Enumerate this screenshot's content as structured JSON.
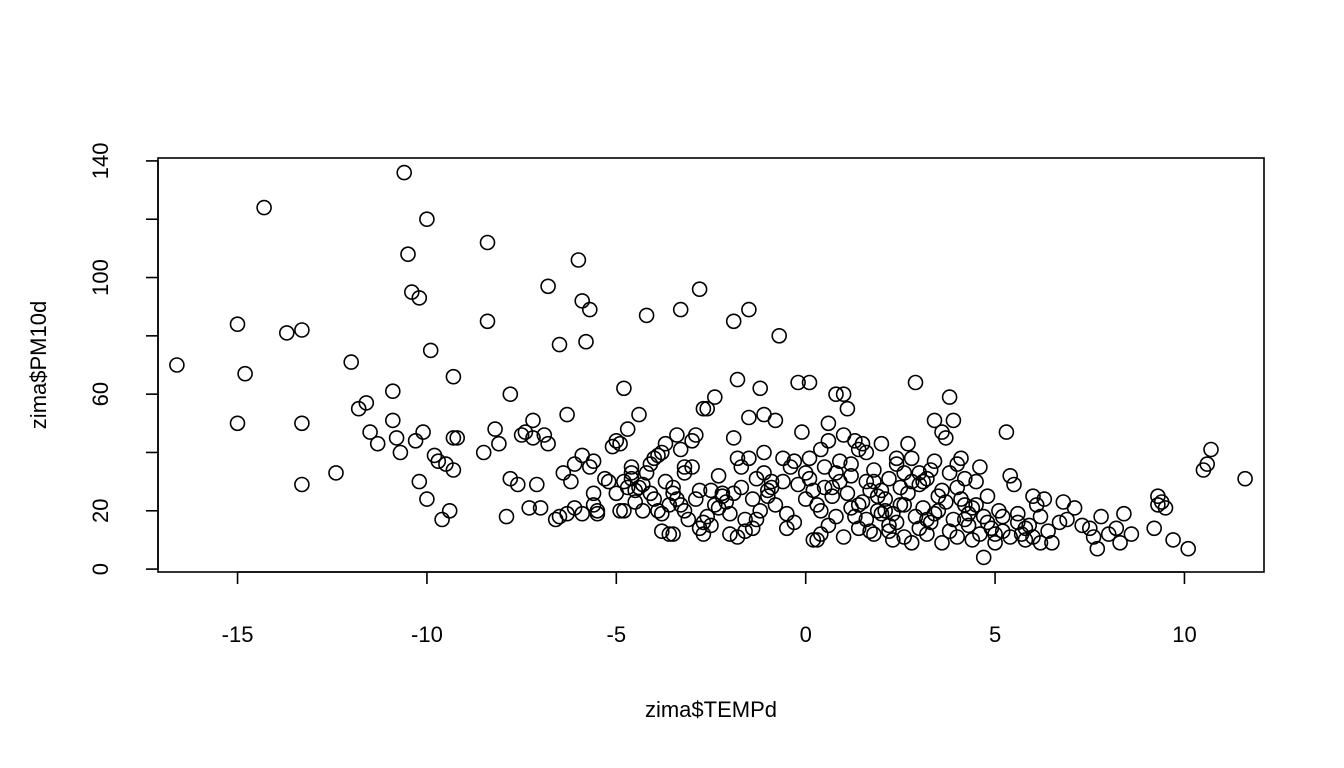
{
  "chart_data": {
    "type": "scatter",
    "title": "",
    "xlabel": "zima$TEMPd",
    "ylabel": "zima$PM10d",
    "xlim": [
      -17.1,
      12.1
    ],
    "ylim": [
      -1,
      141
    ],
    "xticks": [
      -15,
      -10,
      -5,
      0,
      5,
      10
    ],
    "xtick_labels": [
      "-15",
      "-10",
      "-5",
      "0",
      "5",
      "10"
    ],
    "yticks": [
      0,
      20,
      40,
      60,
      80,
      100,
      120,
      140
    ],
    "ytick_labels": [
      "0",
      "20",
      "",
      "60",
      "",
      "100",
      "",
      "140"
    ],
    "grid": false,
    "marker": "open-circle",
    "marker_color": "#000000",
    "points": [
      [
        -16.6,
        70
      ],
      [
        -15.0,
        84
      ],
      [
        -15.0,
        50
      ],
      [
        -14.3,
        124
      ],
      [
        -14.8,
        67
      ],
      [
        -13.7,
        81
      ],
      [
        -13.3,
        82
      ],
      [
        -13.3,
        50
      ],
      [
        -13.3,
        29
      ],
      [
        -12.4,
        33
      ],
      [
        -12.0,
        71
      ],
      [
        -11.8,
        55
      ],
      [
        -11.6,
        57
      ],
      [
        -11.5,
        47
      ],
      [
        -11.3,
        43
      ],
      [
        -10.9,
        61
      ],
      [
        -10.9,
        51
      ],
      [
        -10.8,
        45
      ],
      [
        -10.7,
        40
      ],
      [
        -10.6,
        136
      ],
      [
        -10.5,
        108
      ],
      [
        -10.4,
        95
      ],
      [
        -10.3,
        44
      ],
      [
        -10.2,
        93
      ],
      [
        -10.2,
        30
      ],
      [
        -10.1,
        47
      ],
      [
        -10.0,
        24
      ],
      [
        -10.0,
        120
      ],
      [
        -9.9,
        75
      ],
      [
        -9.8,
        39
      ],
      [
        -9.7,
        37
      ],
      [
        -9.6,
        17
      ],
      [
        -9.5,
        36
      ],
      [
        -9.4,
        20
      ],
      [
        -9.3,
        66
      ],
      [
        -9.3,
        45
      ],
      [
        -9.2,
        45
      ],
      [
        -9.3,
        34
      ],
      [
        -8.5,
        40
      ],
      [
        -8.4,
        112
      ],
      [
        -8.4,
        85
      ],
      [
        -8.2,
        48
      ],
      [
        -8.1,
        43
      ],
      [
        -7.8,
        60
      ],
      [
        -7.8,
        31
      ],
      [
        -7.6,
        29
      ],
      [
        -7.9,
        18
      ],
      [
        -7.5,
        46
      ],
      [
        -7.4,
        47
      ],
      [
        -7.3,
        21
      ],
      [
        -7.2,
        51
      ],
      [
        -7.2,
        45
      ],
      [
        -7.1,
        29
      ],
      [
        -6.9,
        46
      ],
      [
        -6.8,
        43
      ],
      [
        -6.8,
        97
      ],
      [
        -6.5,
        77
      ],
      [
        -6.5,
        18
      ],
      [
        -6.4,
        33
      ],
      [
        -6.3,
        53
      ],
      [
        -6.1,
        21
      ],
      [
        -6.0,
        106
      ],
      [
        -5.9,
        39
      ],
      [
        -5.9,
        92
      ],
      [
        -5.8,
        78
      ],
      [
        -5.7,
        89
      ],
      [
        -5.7,
        35
      ],
      [
        -5.6,
        37
      ],
      [
        -5.6,
        22
      ],
      [
        -5.5,
        20
      ],
      [
        -5.5,
        19
      ],
      [
        -6.2,
        30
      ],
      [
        -5.0,
        44
      ],
      [
        -4.9,
        43
      ],
      [
        -4.8,
        62
      ],
      [
        -4.8,
        30
      ],
      [
        -4.7,
        48
      ],
      [
        -4.6,
        33
      ],
      [
        -4.6,
        35
      ],
      [
        -4.5,
        27
      ],
      [
        -4.4,
        53
      ],
      [
        -4.3,
        29
      ],
      [
        -4.2,
        87
      ],
      [
        -4.1,
        36
      ],
      [
        -4.0,
        24
      ],
      [
        -3.9,
        39
      ],
      [
        -3.8,
        19
      ],
      [
        -3.8,
        13
      ],
      [
        -3.7,
        43
      ],
      [
        -3.6,
        12
      ],
      [
        -3.5,
        12
      ],
      [
        -3.5,
        28
      ],
      [
        -3.4,
        46
      ],
      [
        -3.3,
        89
      ],
      [
        -3.3,
        41
      ],
      [
        -3.2,
        35
      ],
      [
        -3.2,
        20
      ],
      [
        -3.0,
        44
      ],
      [
        -2.9,
        46
      ],
      [
        -2.8,
        96
      ],
      [
        -2.8,
        27
      ],
      [
        -2.7,
        16
      ],
      [
        -2.7,
        55
      ],
      [
        -2.6,
        55
      ],
      [
        -2.5,
        27
      ],
      [
        -2.4,
        59
      ],
      [
        -2.3,
        32
      ],
      [
        -2.2,
        25
      ],
      [
        -2.0,
        19
      ],
      [
        -2.0,
        12
      ],
      [
        -1.9,
        45
      ],
      [
        -1.9,
        85
      ],
      [
        -1.8,
        65
      ],
      [
        -1.8,
        38
      ],
      [
        -1.7,
        28
      ],
      [
        -1.6,
        13
      ],
      [
        -1.5,
        89
      ],
      [
        -1.5,
        52
      ],
      [
        -1.4,
        24
      ],
      [
        -1.3,
        17
      ],
      [
        -1.2,
        62
      ],
      [
        -1.1,
        53
      ],
      [
        -1.1,
        40
      ],
      [
        -1.0,
        27
      ],
      [
        -0.9,
        30
      ],
      [
        -0.8,
        51
      ],
      [
        -0.7,
        80
      ],
      [
        -0.6,
        38
      ],
      [
        -0.5,
        19
      ],
      [
        -0.4,
        35
      ],
      [
        -0.3,
        16
      ],
      [
        -0.2,
        64
      ],
      [
        -0.1,
        47
      ],
      [
        0.0,
        33
      ],
      [
        0.1,
        64
      ],
      [
        0.1,
        38
      ],
      [
        0.2,
        27
      ],
      [
        0.3,
        10
      ],
      [
        0.4,
        20
      ],
      [
        0.5,
        35
      ],
      [
        0.6,
        50
      ],
      [
        0.7,
        28
      ],
      [
        0.8,
        60
      ],
      [
        0.9,
        37
      ],
      [
        1.0,
        60
      ],
      [
        1.1,
        55
      ],
      [
        1.2,
        32
      ],
      [
        1.3,
        44
      ],
      [
        1.4,
        22
      ],
      [
        1.5,
        43
      ],
      [
        1.6,
        40
      ],
      [
        1.7,
        13
      ],
      [
        1.8,
        30
      ],
      [
        1.9,
        25
      ],
      [
        2.0,
        43
      ],
      [
        2.1,
        20
      ],
      [
        2.2,
        15
      ],
      [
        2.3,
        10
      ],
      [
        2.4,
        36
      ],
      [
        2.5,
        28
      ],
      [
        2.6,
        22
      ],
      [
        2.7,
        43
      ],
      [
        2.8,
        38
      ],
      [
        2.9,
        64
      ],
      [
        3.0,
        33
      ],
      [
        3.1,
        30
      ],
      [
        3.2,
        17
      ],
      [
        3.3,
        34
      ],
      [
        3.4,
        51
      ],
      [
        3.5,
        25
      ],
      [
        3.6,
        47
      ],
      [
        3.7,
        45
      ],
      [
        3.8,
        59
      ],
      [
        3.9,
        51
      ],
      [
        4.0,
        28
      ],
      [
        4.1,
        38
      ],
      [
        4.2,
        22
      ],
      [
        4.3,
        15
      ],
      [
        4.4,
        10
      ],
      [
        4.5,
        30
      ],
      [
        4.6,
        35
      ],
      [
        4.7,
        4
      ],
      [
        4.8,
        25
      ],
      [
        4.9,
        14
      ],
      [
        5.0,
        12
      ],
      [
        5.1,
        20
      ],
      [
        5.2,
        18
      ],
      [
        5.3,
        47
      ],
      [
        5.4,
        32
      ],
      [
        5.5,
        29
      ],
      [
        5.6,
        16
      ],
      [
        5.7,
        12
      ],
      [
        5.8,
        10
      ],
      [
        5.9,
        15
      ],
      [
        6.0,
        25
      ],
      [
        6.1,
        22
      ],
      [
        6.2,
        18
      ],
      [
        6.3,
        24
      ],
      [
        6.4,
        13
      ],
      [
        6.5,
        9
      ],
      [
        6.7,
        16
      ],
      [
        6.8,
        23
      ],
      [
        6.9,
        17
      ],
      [
        7.1,
        21
      ],
      [
        7.3,
        15
      ],
      [
        7.5,
        14
      ],
      [
        7.6,
        11
      ],
      [
        7.7,
        7
      ],
      [
        7.8,
        18
      ],
      [
        8.0,
        12
      ],
      [
        8.2,
        14
      ],
      [
        8.3,
        9
      ],
      [
        8.4,
        19
      ],
      [
        8.6,
        12
      ],
      [
        9.2,
        14
      ],
      [
        9.3,
        25
      ],
      [
        9.3,
        22
      ],
      [
        9.4,
        23
      ],
      [
        9.5,
        21
      ],
      [
        9.7,
        10
      ],
      [
        10.1,
        7
      ],
      [
        10.5,
        34
      ],
      [
        10.6,
        36
      ],
      [
        10.7,
        41
      ],
      [
        11.6,
        31
      ],
      [
        0.2,
        10
      ],
      [
        0.4,
        12
      ],
      [
        0.6,
        15
      ],
      [
        0.8,
        18
      ],
      [
        1.0,
        11
      ],
      [
        1.2,
        21
      ],
      [
        1.4,
        14
      ],
      [
        1.6,
        17
      ],
      [
        1.8,
        12
      ],
      [
        2.0,
        19
      ],
      [
        2.2,
        13
      ],
      [
        2.4,
        16
      ],
      [
        2.6,
        11
      ],
      [
        2.8,
        9
      ],
      [
        3.0,
        14
      ],
      [
        3.2,
        12
      ],
      [
        3.4,
        19
      ],
      [
        3.6,
        9
      ],
      [
        3.8,
        13
      ],
      [
        4.0,
        11
      ],
      [
        4.2,
        17
      ],
      [
        4.4,
        21
      ],
      [
        4.6,
        12
      ],
      [
        4.8,
        16
      ],
      [
        5.0,
        9
      ],
      [
        5.2,
        13
      ],
      [
        5.4,
        11
      ],
      [
        5.6,
        19
      ],
      [
        5.8,
        14
      ],
      [
        6.0,
        11
      ],
      [
        6.2,
        9
      ],
      [
        0.0,
        24
      ],
      [
        0.3,
        22
      ],
      [
        0.5,
        28
      ],
      [
        0.7,
        25
      ],
      [
        0.9,
        30
      ],
      [
        1.1,
        26
      ],
      [
        1.3,
        18
      ],
      [
        1.5,
        23
      ],
      [
        1.7,
        27
      ],
      [
        1.9,
        20
      ],
      [
        2.1,
        24
      ],
      [
        2.3,
        19
      ],
      [
        2.5,
        22
      ],
      [
        2.7,
        26
      ],
      [
        2.9,
        18
      ],
      [
        3.1,
        21
      ],
      [
        3.3,
        16
      ],
      [
        3.5,
        20
      ],
      [
        3.7,
        23
      ],
      [
        3.9,
        17
      ],
      [
        4.1,
        24
      ],
      [
        4.3,
        19
      ],
      [
        4.5,
        22
      ],
      [
        4.7,
        18
      ],
      [
        -0.5,
        14
      ],
      [
        -0.8,
        22
      ],
      [
        -1.0,
        25
      ],
      [
        -1.2,
        20
      ],
      [
        -1.4,
        14
      ],
      [
        -1.6,
        17
      ],
      [
        -1.8,
        11
      ],
      [
        -2.1,
        23
      ],
      [
        -2.3,
        21
      ],
      [
        -2.5,
        15
      ],
      [
        -2.7,
        12
      ],
      [
        -2.9,
        24
      ],
      [
        -3.1,
        17
      ],
      [
        -3.3,
        22
      ],
      [
        -3.5,
        26
      ],
      [
        -3.7,
        30
      ],
      [
        -3.9,
        20
      ],
      [
        -4.1,
        26
      ],
      [
        -4.3,
        20
      ],
      [
        -4.5,
        23
      ],
      [
        -4.7,
        28
      ],
      [
        -4.9,
        20
      ],
      [
        -5.1,
        42
      ],
      [
        -5.3,
        31
      ],
      [
        -5.6,
        26
      ],
      [
        -5.9,
        19
      ],
      [
        -6.1,
        36
      ],
      [
        -6.3,
        19
      ],
      [
        -6.6,
        17
      ],
      [
        -7.0,
        21
      ],
      [
        -0.2,
        29
      ],
      [
        0.1,
        31
      ],
      [
        0.4,
        41
      ],
      [
        0.6,
        44
      ],
      [
        0.8,
        33
      ],
      [
        1.0,
        46
      ],
      [
        1.2,
        36
      ],
      [
        1.4,
        41
      ],
      [
        1.6,
        30
      ],
      [
        1.8,
        34
      ],
      [
        2.0,
        27
      ],
      [
        2.2,
        31
      ],
      [
        2.4,
        38
      ],
      [
        2.6,
        33
      ],
      [
        2.8,
        30
      ],
      [
        3.0,
        29
      ],
      [
        3.2,
        31
      ],
      [
        3.4,
        37
      ],
      [
        3.6,
        27
      ],
      [
        3.8,
        33
      ],
      [
        4.0,
        36
      ],
      [
        4.2,
        31
      ],
      [
        -0.3,
        37
      ],
      [
        -0.6,
        30
      ],
      [
        -0.9,
        28
      ],
      [
        -1.1,
        33
      ],
      [
        -1.3,
        31
      ],
      [
        -1.5,
        38
      ],
      [
        -1.7,
        35
      ],
      [
        -1.9,
        26
      ],
      [
        -2.2,
        26
      ],
      [
        -2.4,
        22
      ],
      [
        -2.6,
        18
      ],
      [
        -2.8,
        14
      ],
      [
        -3.0,
        35
      ],
      [
        -3.2,
        33
      ],
      [
        -3.4,
        24
      ],
      [
        -3.6,
        22
      ],
      [
        -3.8,
        40
      ],
      [
        -4.0,
        38
      ],
      [
        -4.2,
        33
      ],
      [
        -4.4,
        28
      ],
      [
        -4.6,
        31
      ],
      [
        -4.8,
        20
      ],
      [
        -5.0,
        26
      ],
      [
        -5.2,
        30
      ]
    ]
  }
}
